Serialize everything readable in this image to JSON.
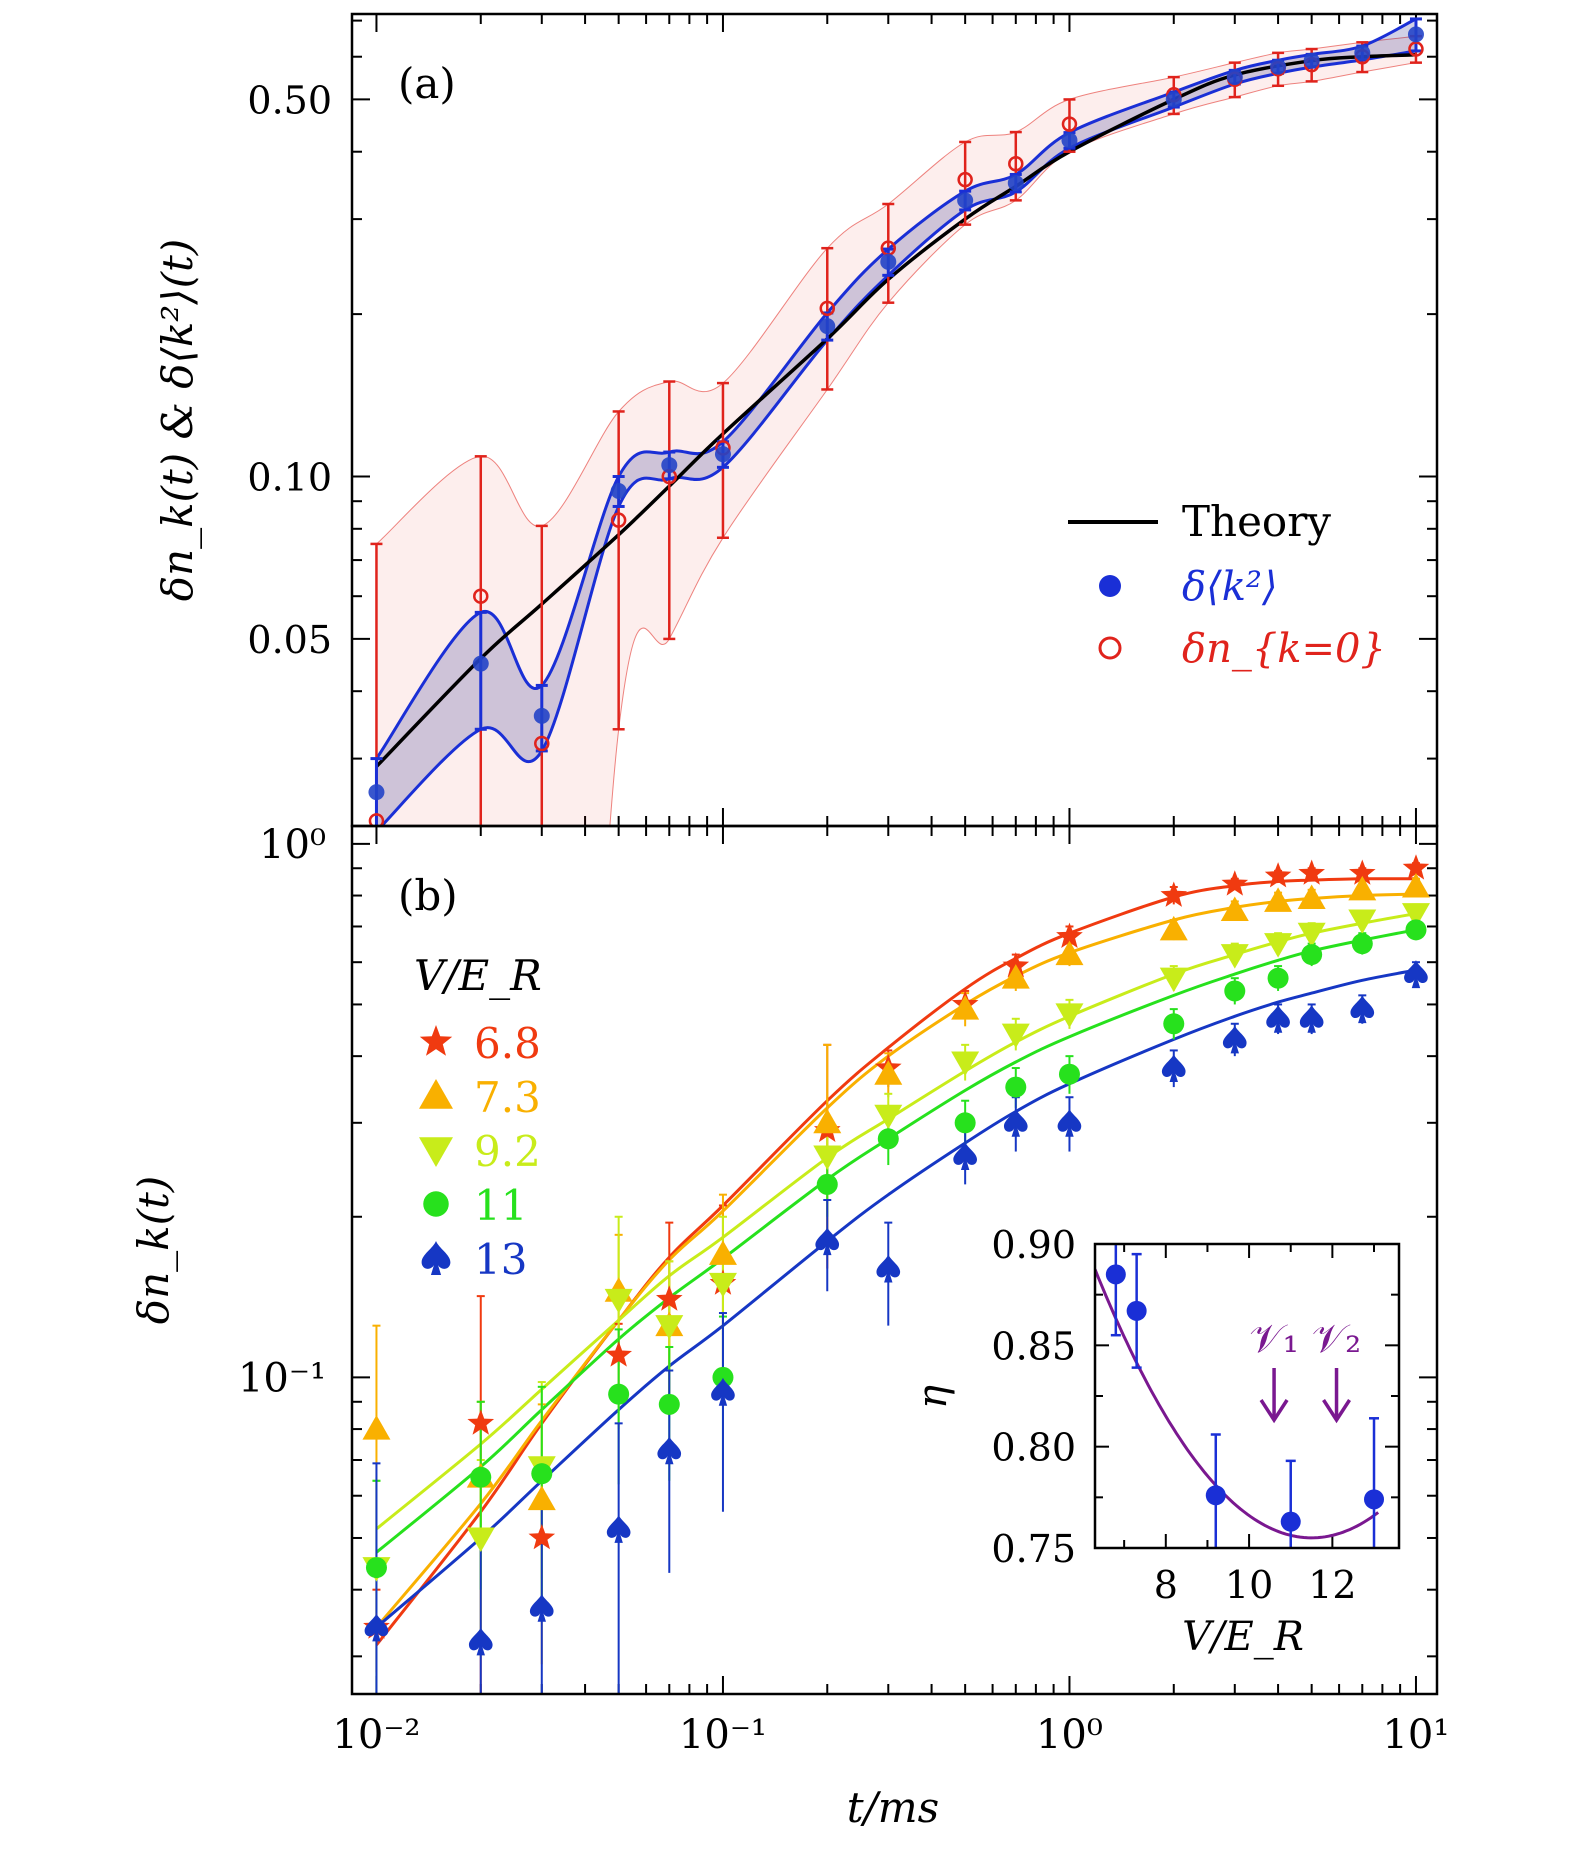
{
  "chart_data": [
    {
      "panel_label": "(a)",
      "type": "scatter",
      "xscale": "log",
      "yscale": "log",
      "xlim": [
        0.0085,
        11.5
      ],
      "ylim": [
        0.0225,
        0.72
      ],
      "ylabel": "δn_k(t) & δ⟨k²⟩(t)",
      "yticks": [
        0.05,
        0.1,
        0.5
      ],
      "ytick_labels": [
        "0.05",
        "0.10",
        "0.50"
      ],
      "x": [
        0.01,
        0.02,
        0.03,
        0.05,
        0.07,
        0.1,
        0.2,
        0.3,
        0.5,
        0.7,
        1,
        2,
        3,
        4,
        5,
        7,
        10
      ],
      "series": [
        {
          "name": "Theory",
          "kind": "line",
          "color": "#000000",
          "x": [
            0.01,
            0.02,
            0.03,
            0.05,
            0.07,
            0.1,
            0.2,
            0.3,
            0.5,
            0.7,
            1,
            2,
            3,
            5,
            7,
            10
          ],
          "values": [
            0.029,
            0.046,
            0.058,
            0.078,
            0.096,
            0.12,
            0.18,
            0.232,
            0.3,
            0.345,
            0.4,
            0.5,
            0.555,
            0.59,
            0.6,
            0.605
          ]
        },
        {
          "name": "δ⟨k²⟩",
          "kind": "filled-circle",
          "color": "#1a2fd6",
          "values": [
            0.026,
            0.045,
            0.036,
            0.094,
            0.105,
            0.11,
            0.19,
            0.25,
            0.325,
            0.35,
            0.42,
            0.5,
            0.55,
            0.575,
            0.59,
            0.61,
            0.66
          ],
          "yerr": [
            0.004,
            0.011,
            0.005,
            0.006,
            0.006,
            0.006,
            0.011,
            0.014,
            0.013,
            0.013,
            0.014,
            0.016,
            0.016,
            0.016,
            0.016,
            0.018,
            0.045
          ]
        },
        {
          "name": "δn_{k=0}",
          "kind": "open-circle",
          "color": "#e0231c",
          "values": [
            0.023,
            0.06,
            0.032,
            0.083,
            0.1,
            0.113,
            0.205,
            0.265,
            0.355,
            0.38,
            0.45,
            0.51,
            0.545,
            0.57,
            0.58,
            0.6,
            0.62
          ],
          "yerr": [
            0.052,
            0.049,
            0.049,
            0.049,
            0.05,
            0.036,
            0.06,
            0.055,
            0.062,
            0.055,
            0.05,
            0.04,
            0.04,
            0.04,
            0.04,
            0.038,
            0.035
          ]
        }
      ],
      "legend": {
        "placement": "center-right",
        "entries": [
          "Theory",
          "δ⟨k²⟩",
          "δn_{k=0}"
        ]
      }
    },
    {
      "panel_label": "(b)",
      "type": "scatter",
      "xscale": "log",
      "yscale": "log",
      "xlim": [
        0.0085,
        11.5
      ],
      "ylim": [
        0.0255,
        1.08
      ],
      "xlabel": "t/ms",
      "ylabel": "δn_k(t)",
      "xticks": [
        0.01,
        0.1,
        1,
        10
      ],
      "xtick_labels": [
        "10⁻²",
        "10⁻¹",
        "10⁰",
        "10¹"
      ],
      "yticks": [
        0.1,
        1
      ],
      "ytick_labels": [
        "10⁻¹",
        "10⁰"
      ],
      "legend_title": "V/E_R",
      "legend": {
        "placement": "top-left"
      },
      "x": [
        0.01,
        0.02,
        0.03,
        0.05,
        0.07,
        0.1,
        0.2,
        0.3,
        0.5,
        0.7,
        1,
        2,
        3,
        4,
        5,
        7,
        10
      ],
      "series": [
        {
          "name": "6.8",
          "marker": "star",
          "color": "#f03a10",
          "values": [
            0.034,
            0.082,
            0.05,
            0.11,
            0.14,
            0.15,
            0.29,
            0.38,
            0.5,
            0.59,
            0.67,
            0.8,
            0.84,
            0.87,
            0.88,
            0.88,
            0.9
          ],
          "yerr": [
            0.006,
            0.06,
            0.008,
            0.016,
            0.055,
            0.06,
            0.13,
            0.03,
            0.03,
            0.03,
            0.03,
            0.03,
            0.02,
            0.02,
            0.02,
            0.02,
            0.02
          ],
          "fit": [
            0.0315,
            0.056,
            0.082,
            0.128,
            0.168,
            0.21,
            0.33,
            0.415,
            0.535,
            0.61,
            0.68,
            0.795,
            0.835,
            0.85,
            0.855,
            0.86,
            0.86
          ]
        },
        {
          "name": "7.3",
          "marker": "triangle-up",
          "color": "#f9b000",
          "values": [
            0.08,
            0.065,
            0.059,
            0.145,
            0.125,
            0.17,
            0.3,
            0.37,
            0.49,
            0.56,
            0.62,
            0.69,
            0.75,
            0.78,
            0.79,
            0.82,
            0.83
          ],
          "yerr": [
            0.045,
            0.025,
            0.03,
            0.04,
            0.04,
            0.05,
            0.12,
            0.035,
            0.035,
            0.03,
            0.03,
            0.03,
            0.03,
            0.03,
            0.03,
            0.03,
            0.03
          ],
          "fit": [
            0.034,
            0.058,
            0.083,
            0.128,
            0.166,
            0.205,
            0.32,
            0.4,
            0.5,
            0.565,
            0.625,
            0.72,
            0.76,
            0.78,
            0.79,
            0.8,
            0.805
          ]
        },
        {
          "name": "9.2",
          "marker": "triangle-down",
          "color": "#c8ec1a",
          "values": [
            0.044,
            0.05,
            0.068,
            0.14,
            0.125,
            0.15,
            0.26,
            0.31,
            0.39,
            0.44,
            0.48,
            0.56,
            0.62,
            0.65,
            0.68,
            0.72,
            0.74
          ],
          "yerr": [
            0.02,
            0.02,
            0.03,
            0.06,
            0.04,
            0.05,
            0.04,
            0.03,
            0.03,
            0.03,
            0.03,
            0.03,
            0.03,
            0.03,
            0.03,
            0.03,
            0.03
          ],
          "fit": [
            0.052,
            0.075,
            0.095,
            0.128,
            0.155,
            0.183,
            0.258,
            0.305,
            0.375,
            0.425,
            0.475,
            0.57,
            0.62,
            0.655,
            0.68,
            0.71,
            0.74
          ]
        },
        {
          "name": "11",
          "marker": "circle",
          "color": "#27e11d",
          "values": [
            0.044,
            0.065,
            0.066,
            0.093,
            0.089,
            0.1,
            0.23,
            0.28,
            0.3,
            0.35,
            0.37,
            0.46,
            0.53,
            0.56,
            0.62,
            0.65,
            0.69
          ],
          "yerr": [
            0.02,
            0.025,
            0.03,
            0.03,
            0.025,
            0.03,
            0.03,
            0.03,
            0.03,
            0.03,
            0.03,
            0.03,
            0.03,
            0.03,
            0.03,
            0.03,
            0.03
          ],
          "fit": [
            0.047,
            0.068,
            0.087,
            0.118,
            0.141,
            0.167,
            0.235,
            0.28,
            0.345,
            0.39,
            0.435,
            0.52,
            0.57,
            0.605,
            0.63,
            0.66,
            0.69
          ]
        },
        {
          "name": "13",
          "marker": "spade",
          "color": "#1637c4",
          "values": [
            0.034,
            0.032,
            0.037,
            0.052,
            0.073,
            0.094,
            0.18,
            0.16,
            0.26,
            0.3,
            0.3,
            0.38,
            0.43,
            0.47,
            0.47,
            0.49,
            0.57
          ],
          "yerr": [
            0.035,
            0.02,
            0.02,
            0.03,
            0.03,
            0.038,
            0.035,
            0.035,
            0.03,
            0.035,
            0.035,
            0.03,
            0.03,
            0.03,
            0.03,
            0.03,
            0.03
          ],
          "fit": [
            0.034,
            0.05,
            0.064,
            0.087,
            0.105,
            0.125,
            0.18,
            0.22,
            0.275,
            0.315,
            0.355,
            0.43,
            0.475,
            0.505,
            0.525,
            0.555,
            0.58
          ]
        }
      ],
      "inset": {
        "type": "scatter",
        "xlabel": "V/E_R",
        "ylabel": "η",
        "xlim": [
          6.3,
          13.6
        ],
        "ylim": [
          0.75,
          0.9
        ],
        "xticks": [
          8,
          10,
          12
        ],
        "yticks": [
          0.75,
          0.8,
          0.85,
          0.9
        ],
        "ytick_labels": [
          "0.75",
          "0.80",
          "0.85",
          "0.90"
        ],
        "x": [
          6.8,
          7.3,
          9.2,
          11,
          13
        ],
        "values": [
          0.885,
          0.867,
          0.776,
          0.763,
          0.774
        ],
        "yerr": [
          0.03,
          0.028,
          0.03,
          0.03,
          0.04
        ],
        "marker_color": "#1a2fd6",
        "fit": {
          "kind": "quadratic",
          "color": "#7a1890",
          "vertex_x": 11.5,
          "vertex_y": 0.755,
          "curvature": 0.0049
        },
        "annotations": [
          {
            "text": "𝒱₁",
            "x": 10.6,
            "color": "#7a1890"
          },
          {
            "text": "𝒱₂",
            "x": 12.1,
            "color": "#7a1890"
          }
        ]
      }
    }
  ]
}
